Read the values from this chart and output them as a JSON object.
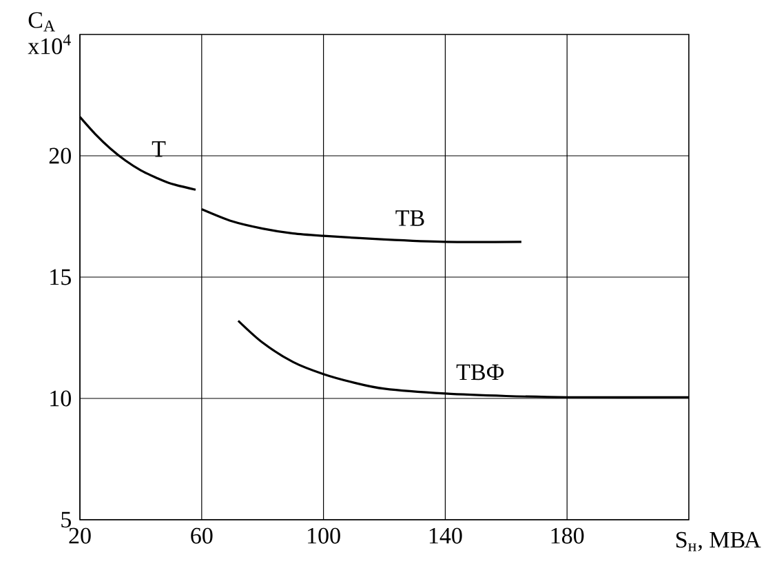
{
  "chart_data": {
    "type": "line",
    "xlabel": "S$_{н}$, МВА",
    "ylabel": "C$_{А}$ x10$^{4}$",
    "xlim": [
      20,
      220
    ],
    "ylim": [
      5,
      25
    ],
    "xticks": [
      20,
      60,
      100,
      140,
      180
    ],
    "yticks": [
      5,
      10,
      15,
      20
    ],
    "grid": true,
    "legend": false,
    "line_style": "solid",
    "marker": "none",
    "series": [
      {
        "name": "Т",
        "color": "#000000",
        "x": [
          20,
          25,
          30,
          35,
          40,
          45,
          50,
          58
        ],
        "values": [
          21.6,
          20.9,
          20.3,
          19.8,
          19.4,
          19.1,
          18.85,
          18.6
        ]
      },
      {
        "name": "ТВ",
        "color": "#000000",
        "x": [
          60,
          70,
          80,
          90,
          100,
          120,
          140,
          165
        ],
        "values": [
          17.8,
          17.3,
          17.0,
          16.8,
          16.7,
          16.55,
          16.45,
          16.45
        ]
      },
      {
        "name": "ТВФ",
        "color": "#000000",
        "x": [
          72,
          80,
          90,
          100,
          110,
          120,
          140,
          160,
          180,
          220
        ],
        "values": [
          13.2,
          12.3,
          11.5,
          11.0,
          10.65,
          10.4,
          10.2,
          10.1,
          10.05,
          10.05
        ]
      }
    ]
  }
}
